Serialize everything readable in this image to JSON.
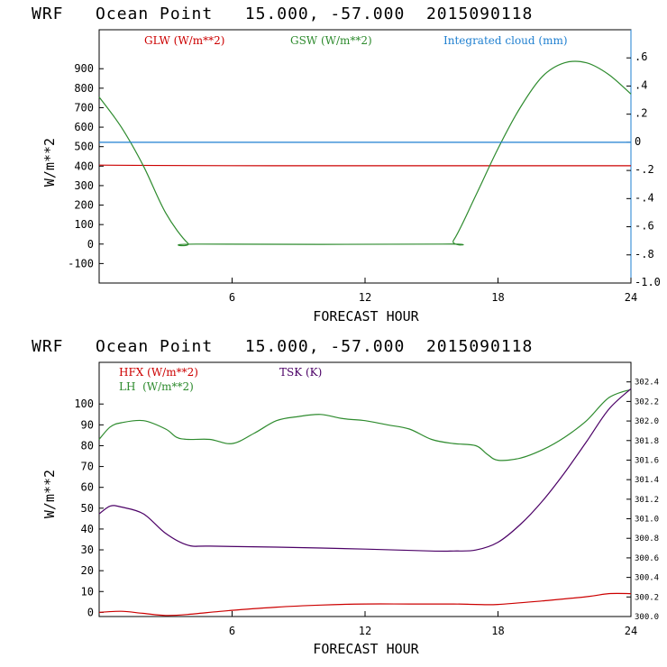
{
  "colors": {
    "red": "#cc0000",
    "green": "#2e8b2e",
    "blue": "#1e7fd0",
    "purple": "#4b0066",
    "frame": "#000000"
  },
  "chart_data": [
    {
      "type": "line",
      "title": "WRF   Ocean Point   15.000, -57.000  2015090118",
      "xlabel": "FORECAST HOUR",
      "ylabel": "W/m**2",
      "xlim": [
        0,
        24
      ],
      "ylim": [
        -200,
        1100
      ],
      "x_ticks": [
        "6",
        "12",
        "18",
        "24"
      ],
      "y_ticks": [
        "-100",
        "0",
        "100",
        "200",
        "300",
        "400",
        "500",
        "600",
        "700",
        "800",
        "900"
      ],
      "y2lim": [
        -1.0,
        0.8
      ],
      "y2_ticks": [
        "-1.0",
        "-.8",
        "-.6",
        "-.4",
        "-.2",
        "0",
        ".2",
        ".4",
        ".6"
      ],
      "legend": [
        "GLW (W/m**2)",
        "GSW (W/m**2)",
        "Integrated cloud (mm)"
      ],
      "series": [
        {
          "name": "GLW (W/m**2)",
          "axis": "left",
          "color": "red",
          "x": [
            0,
            4,
            8,
            12,
            16,
            20,
            24
          ],
          "y": [
            405,
            403,
            402,
            402,
            402,
            402,
            402
          ]
        },
        {
          "name": "GSW (W/m**2)",
          "axis": "left",
          "color": "green",
          "x": [
            0,
            1,
            2,
            3,
            4,
            4.5,
            15.5,
            16,
            17,
            18,
            19,
            20,
            21,
            22,
            23,
            24
          ],
          "y": [
            755,
            600,
            400,
            160,
            5,
            0,
            0,
            20,
            250,
            490,
            700,
            860,
            930,
            930,
            870,
            770
          ]
        },
        {
          "name": "Integrated cloud (mm)",
          "axis": "right",
          "color": "blue",
          "x": [
            0,
            24
          ],
          "y": [
            0,
            0
          ]
        }
      ]
    },
    {
      "type": "line",
      "title": "WRF   Ocean Point   15.000, -57.000  2015090118",
      "xlabel": "FORECAST HOUR",
      "ylabel": "W/m**2",
      "xlim": [
        0,
        24
      ],
      "ylim": [
        -2,
        120
      ],
      "x_ticks": [
        "6",
        "12",
        "18",
        "24"
      ],
      "y_ticks": [
        "0",
        "10",
        "20",
        "30",
        "40",
        "50",
        "60",
        "70",
        "80",
        "90",
        "100"
      ],
      "y2lim": [
        300.0,
        302.6
      ],
      "y2_ticks": [
        "300.0",
        "300.2",
        "300.4",
        "300.6",
        "300.8",
        "301.0",
        "301.2",
        "301.4",
        "301.6",
        "301.8",
        "302.0",
        "302.2",
        "302.4"
      ],
      "legend": [
        "HFX (W/m**2)",
        "LH  (W/m**2)",
        "TSK (K)"
      ],
      "series": [
        {
          "name": "HFX (W/m**2)",
          "axis": "left",
          "color": "red",
          "x": [
            0,
            1,
            2,
            3,
            4,
            6,
            8,
            10,
            12,
            14,
            16,
            17,
            18,
            20,
            22,
            23,
            24
          ],
          "y": [
            0,
            0.5,
            -0.5,
            -1.5,
            -1,
            1,
            2.5,
            3.5,
            4,
            4,
            4,
            3.8,
            3.8,
            5.5,
            7.5,
            9,
            9
          ]
        },
        {
          "name": "LH  (W/m**2)",
          "axis": "left",
          "color": "green",
          "x": [
            0,
            0.5,
            1,
            2,
            3,
            3.5,
            4,
            5,
            6,
            7,
            8,
            9,
            10,
            11,
            12,
            13,
            14,
            15,
            16,
            17,
            17.5,
            18,
            19,
            20,
            21,
            22,
            23,
            24
          ],
          "y": [
            83,
            89,
            91,
            92,
            88,
            84,
            83,
            83,
            81,
            86,
            92,
            94,
            95,
            93,
            92,
            90,
            88,
            83,
            81,
            80,
            76,
            73,
            74,
            78,
            84,
            92,
            103,
            107
          ]
        },
        {
          "name": "TSK (K)",
          "axis": "right",
          "color": "purple",
          "x": [
            0,
            0.5,
            1,
            2,
            3,
            4,
            5,
            8,
            12,
            15,
            16,
            17,
            18,
            19,
            20,
            21,
            22,
            23,
            24
          ],
          "y": [
            301.05,
            301.13,
            301.12,
            301.05,
            300.85,
            300.73,
            300.72,
            300.71,
            300.69,
            300.67,
            300.67,
            300.68,
            300.76,
            300.94,
            301.18,
            301.47,
            301.79,
            302.12,
            302.33
          ]
        }
      ]
    }
  ]
}
